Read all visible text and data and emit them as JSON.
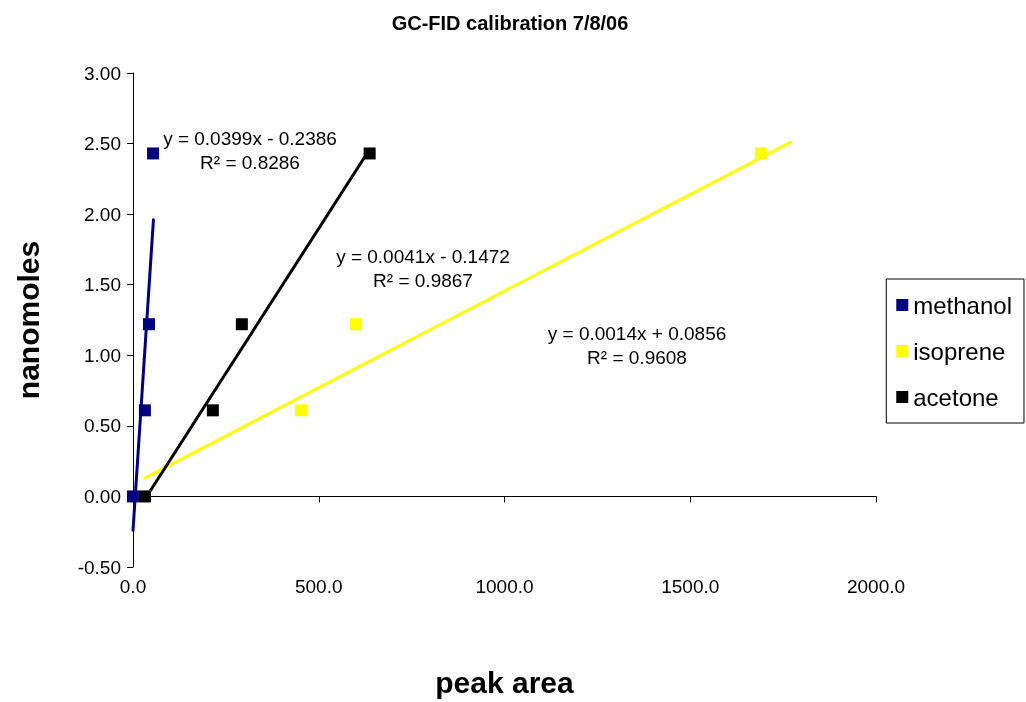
{
  "chart_data": {
    "type": "scatter",
    "title": "GC-FID calibration 7/8/06",
    "xlabel": "peak area",
    "ylabel": "nanomoles",
    "xlim": [
      0,
      2000
    ],
    "xticks": [
      {
        "value": 0,
        "label": "0.0"
      },
      {
        "value": 500,
        "label": "500.0"
      },
      {
        "value": 1000,
        "label": "1000.0"
      },
      {
        "value": 1500,
        "label": "1500.0"
      },
      {
        "value": 2000,
        "label": "2000.0"
      }
    ],
    "ylim": [
      -0.5,
      3
    ],
    "yticks": [
      {
        "value": -0.5,
        "label": "-0.50"
      },
      {
        "value": 0,
        "label": "0.00"
      },
      {
        "value": 0.5,
        "label": "0.50"
      },
      {
        "value": 1,
        "label": "1.00"
      },
      {
        "value": 1.5,
        "label": "1.50"
      },
      {
        "value": 2,
        "label": "2.00"
      },
      {
        "value": 2.5,
        "label": "2.50"
      },
      {
        "value": 3,
        "label": "3.00"
      }
    ],
    "legend": "right",
    "marker": "square",
    "series": [
      {
        "name": "methanol",
        "color": "#000080",
        "x": [
          0,
          32,
          43,
          54
        ],
        "values": [
          0,
          0.61,
          1.22,
          2.43
        ]
      },
      {
        "name": "isoprene",
        "color": "#ffff00",
        "x": [
          32,
          452,
          600,
          1690
        ],
        "values": [
          0,
          0.61,
          1.22,
          2.43
        ]
      },
      {
        "name": "acetone",
        "color": "#000000",
        "x": [
          32,
          215,
          293,
          637
        ],
        "values": [
          0,
          0.61,
          1.22,
          2.43
        ]
      },
      {
        "type": "line",
        "color": "#000080",
        "x": [
          0,
          55
        ],
        "values": [
          -0.24,
          1.96
        ],
        "marker": "none"
      },
      {
        "type": "line",
        "color": "#ffff00",
        "x": [
          32,
          1770
        ],
        "values": [
          0.13,
          2.51
        ],
        "marker": "none"
      },
      {
        "type": "line",
        "color": "#000000",
        "x": [
          32,
          637
        ],
        "values": [
          -0.02,
          2.46
        ],
        "marker": "none"
      }
    ],
    "annotations": [
      "y = 0.0399x - 0.2386\nR² = 0.8286",
      "y = 0.0041x - 0.1472\nR² = 0.9867",
      "y = 0.0014x + 0.0856\nR² = 0.9608"
    ]
  }
}
